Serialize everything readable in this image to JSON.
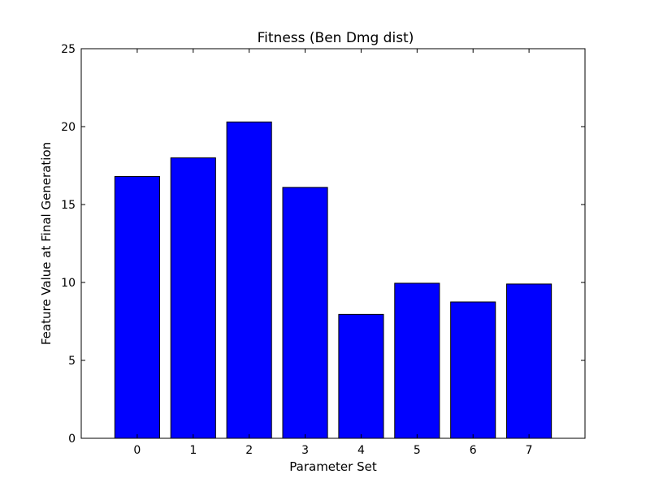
{
  "chart_data": {
    "type": "bar",
    "title": "Fitness (Ben Dmg dist)",
    "xlabel": "Parameter Set",
    "ylabel": "Feature Value at Final Generation",
    "categories": [
      "0",
      "1",
      "2",
      "3",
      "4",
      "5",
      "6",
      "7"
    ],
    "values": [
      16.8,
      18.0,
      20.3,
      16.1,
      7.95,
      9.95,
      8.75,
      9.9
    ],
    "ylim": [
      0,
      25
    ],
    "yticks": [
      "0",
      "5",
      "10",
      "15",
      "20",
      "25"
    ],
    "xlim": [
      -1,
      8
    ],
    "grid": false,
    "legend": "none",
    "bar_color": "#0000ff",
    "edge_color": "#000000"
  }
}
